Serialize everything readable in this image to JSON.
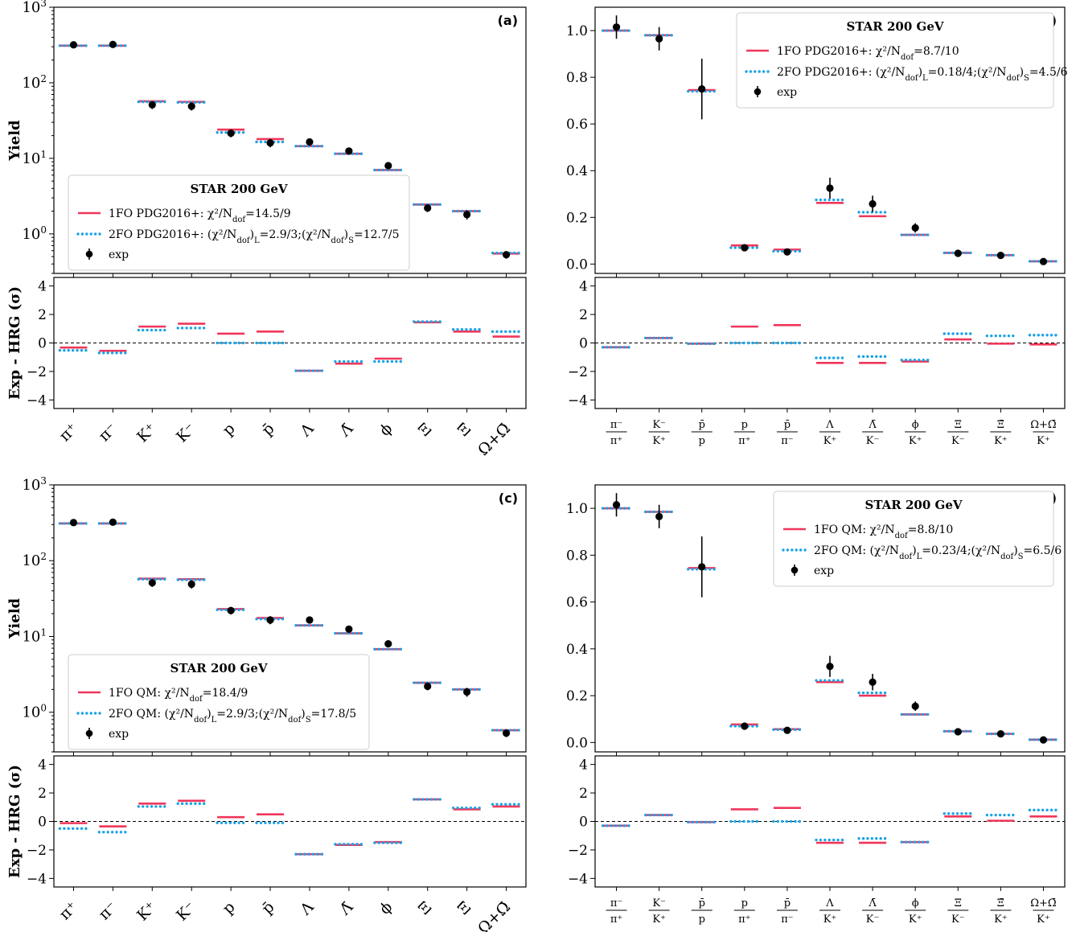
{
  "labels": {
    "yield_ylabel": "Yield",
    "resid_ylabel": "Exp - HRG (σ)",
    "exp": "exp"
  },
  "colors": {
    "fo1": "#f0365a",
    "fo2": "#1ca3e6",
    "exp": "#000000"
  },
  "chart_data": [
    {
      "panel": "(a)",
      "type": "scatter",
      "yscale": "log",
      "ylim": [
        0.3,
        1000
      ],
      "yticks": [
        "10⁰",
        "10¹",
        "10²",
        "10³"
      ],
      "categories": [
        "π⁺",
        "π⁻",
        "K⁺",
        "K⁻",
        "p",
        "p̄",
        "Λ",
        "Λ̄",
        "ϕ",
        "Ξ",
        "Ξ̄",
        "Ω+Ω̄"
      ],
      "legend": {
        "title": "STAR 200 GeV",
        "fo1": "1FO PDG2016+: χ²/N_dof=14.5/9",
        "fo2": "2FO PDG2016+: (χ²/N_dof)_L=2.9/3;(χ²/N_dof)_S=12.7/5",
        "placement": "lower-left"
      },
      "series": [
        {
          "name": "1FO PDG2016+",
          "values": [
            310,
            310,
            57,
            56,
            24,
            18,
            14.5,
            11.5,
            7.0,
            2.45,
            2.0,
            0.55
          ]
        },
        {
          "name": "2FO PDG2016+",
          "values": [
            310,
            310,
            56,
            55,
            22,
            16.5,
            14.5,
            11.5,
            7.0,
            2.45,
            2.0,
            0.56
          ]
        },
        {
          "name": "exp",
          "values": [
            318,
            322,
            51,
            49,
            21.5,
            16,
            16.5,
            12.5,
            8.0,
            2.2,
            1.8,
            0.53
          ],
          "errors": [
            20,
            20,
            6,
            6,
            2.5,
            2,
            1,
            0.8,
            0.6,
            0.25,
            0.25,
            0.06
          ]
        }
      ],
      "residuals": {
        "ylim": [
          -4.6,
          4.6
        ],
        "fo1": [
          -0.32,
          -0.55,
          1.15,
          1.35,
          0.65,
          0.8,
          -1.95,
          -1.45,
          -1.1,
          1.45,
          0.8,
          0.45
        ],
        "fo2": [
          -0.52,
          -0.7,
          0.9,
          1.05,
          0.0,
          0.0,
          -1.95,
          -1.3,
          -1.3,
          1.5,
          0.95,
          0.8
        ]
      }
    },
    {
      "panel": "(b)",
      "type": "scatter",
      "yscale": "linear",
      "ylim": [
        -0.04,
        1.1
      ],
      "yticks": [
        "0.0",
        "0.2",
        "0.4",
        "0.6",
        "0.8",
        "1.0"
      ],
      "categories": [
        {
          "num": "π⁻",
          "den": "π⁺"
        },
        {
          "num": "K⁻",
          "den": "K⁺"
        },
        {
          "num": "p̄",
          "den": "p"
        },
        {
          "num": "p",
          "den": "π⁺"
        },
        {
          "num": "p̄",
          "den": "π⁻"
        },
        {
          "num": "Λ",
          "den": "K⁺"
        },
        {
          "num": "Λ̄",
          "den": "K⁻"
        },
        {
          "num": "ϕ",
          "den": "K⁺"
        },
        {
          "num": "Ξ",
          "den": "K⁻"
        },
        {
          "num": "Ξ̄",
          "den": "K⁺"
        },
        {
          "num": "Ω+Ω̄",
          "den": "K⁺"
        }
      ],
      "legend": {
        "title": "STAR 200 GeV",
        "fo1": "1FO PDG2016+: χ²/N_dof=8.7/10",
        "fo2": "2FO PDG2016+: (χ²/N_dof)_L=0.18/4;(χ²/N_dof)_S=4.5/6",
        "placement": "top-right"
      },
      "series": [
        {
          "name": "1FO PDG2016+",
          "values": [
            1.0,
            0.98,
            0.745,
            0.08,
            0.062,
            0.262,
            0.205,
            0.125,
            0.048,
            0.038,
            0.012
          ]
        },
        {
          "name": "2FO PDG2016+",
          "values": [
            1.0,
            0.98,
            0.74,
            0.07,
            0.055,
            0.275,
            0.222,
            0.125,
            0.048,
            0.038,
            0.012
          ]
        },
        {
          "name": "exp",
          "values": [
            1.015,
            0.965,
            0.75,
            0.07,
            0.052,
            0.325,
            0.258,
            0.155,
            0.046,
            0.037,
            0.011
          ],
          "errors": [
            0.05,
            0.05,
            0.13,
            0.008,
            0.006,
            0.045,
            0.035,
            0.02,
            0.005,
            0.004,
            0.002
          ]
        }
      ],
      "residuals": {
        "ylim": [
          -4.6,
          4.6
        ],
        "fo1": [
          -0.3,
          0.35,
          -0.05,
          1.15,
          1.25,
          -1.4,
          -1.4,
          -1.3,
          0.25,
          -0.05,
          -0.1
        ],
        "fo2": [
          -0.3,
          0.35,
          -0.05,
          0.0,
          0.0,
          -1.05,
          -0.95,
          -1.2,
          0.65,
          0.5,
          0.55
        ]
      }
    },
    {
      "panel": "(c)",
      "type": "scatter",
      "yscale": "log",
      "ylim": [
        0.3,
        1000
      ],
      "yticks": [
        "10⁰",
        "10¹",
        "10²",
        "10³"
      ],
      "categories": [
        "π⁺",
        "π⁻",
        "K⁺",
        "K⁻",
        "p",
        "p̄",
        "Λ",
        "Λ̄",
        "ϕ",
        "Ξ",
        "Ξ̄",
        "Ω+Ω̄"
      ],
      "legend": {
        "title": "STAR 200 GeV",
        "fo1": "1FO QM: χ²/N_dof=18.4/9",
        "fo2": "2FO QM: (χ²/N_dof)_L=2.9/3;(χ²/N_dof)_S=17.8/5",
        "placement": "lower-left"
      },
      "series": [
        {
          "name": "1FO QM",
          "values": [
            310,
            310,
            58,
            57,
            23,
            17.5,
            14,
            11,
            6.8,
            2.45,
            2.0,
            0.58
          ]
        },
        {
          "name": "2FO QM",
          "values": [
            310,
            310,
            57,
            56,
            22.5,
            17,
            14,
            11,
            6.8,
            2.45,
            2.0,
            0.58
          ]
        },
        {
          "name": "exp",
          "values": [
            318,
            322,
            51,
            49,
            22,
            16.5,
            16.5,
            12.5,
            8.0,
            2.2,
            1.85,
            0.53
          ],
          "errors": [
            20,
            20,
            6,
            6,
            2.5,
            2,
            1,
            0.8,
            0.6,
            0.25,
            0.25,
            0.06
          ]
        }
      ],
      "residuals": {
        "ylim": [
          -4.6,
          4.6
        ],
        "fo1": [
          -0.12,
          -0.35,
          1.25,
          1.45,
          0.3,
          0.5,
          -2.3,
          -1.65,
          -1.45,
          1.55,
          0.85,
          1.05
        ],
        "fo2": [
          -0.5,
          -0.75,
          1.05,
          1.25,
          -0.1,
          -0.1,
          -2.3,
          -1.6,
          -1.5,
          1.55,
          0.95,
          1.2
        ]
      }
    },
    {
      "panel": "(d)",
      "type": "scatter",
      "yscale": "linear",
      "ylim": [
        -0.04,
        1.1
      ],
      "yticks": [
        "0.0",
        "0.2",
        "0.4",
        "0.6",
        "0.8",
        "1.0"
      ],
      "categories": [
        {
          "num": "π⁻",
          "den": "π⁺"
        },
        {
          "num": "K⁻",
          "den": "K⁺"
        },
        {
          "num": "p̄",
          "den": "p"
        },
        {
          "num": "p",
          "den": "π⁺"
        },
        {
          "num": "p̄",
          "den": "π⁻"
        },
        {
          "num": "Λ",
          "den": "K⁺"
        },
        {
          "num": "Λ̄",
          "den": "K⁻"
        },
        {
          "num": "ϕ",
          "den": "K⁺"
        },
        {
          "num": "Ξ",
          "den": "K⁻"
        },
        {
          "num": "Ξ̄",
          "den": "K⁺"
        },
        {
          "num": "Ω+Ω̄",
          "den": "K⁺"
        }
      ],
      "legend": {
        "title": "STAR 200 GeV",
        "fo1": "1FO QM: χ²/N_dof=8.8/10",
        "fo2": "2FO QM: (χ²/N_dof)_L=0.23/4;(χ²/N_dof)_S=6.5/6",
        "placement": "top-right"
      },
      "series": [
        {
          "name": "1FO QM",
          "values": [
            1.0,
            0.985,
            0.745,
            0.077,
            0.057,
            0.258,
            0.2,
            0.12,
            0.048,
            0.037,
            0.012
          ]
        },
        {
          "name": "2FO QM",
          "values": [
            1.0,
            0.985,
            0.74,
            0.07,
            0.055,
            0.265,
            0.212,
            0.12,
            0.048,
            0.037,
            0.012
          ]
        },
        {
          "name": "exp",
          "values": [
            1.015,
            0.965,
            0.75,
            0.07,
            0.052,
            0.325,
            0.258,
            0.155,
            0.046,
            0.037,
            0.011
          ],
          "errors": [
            0.05,
            0.05,
            0.13,
            0.008,
            0.006,
            0.045,
            0.035,
            0.02,
            0.005,
            0.004,
            0.002
          ]
        }
      ],
      "residuals": {
        "ylim": [
          -4.6,
          4.6
        ],
        "fo1": [
          -0.3,
          0.45,
          -0.05,
          0.85,
          0.95,
          -1.5,
          -1.5,
          -1.45,
          0.35,
          0.05,
          0.35
        ],
        "fo2": [
          -0.3,
          0.45,
          -0.05,
          0.0,
          0.0,
          -1.3,
          -1.2,
          -1.45,
          0.55,
          0.45,
          0.8
        ]
      }
    }
  ]
}
